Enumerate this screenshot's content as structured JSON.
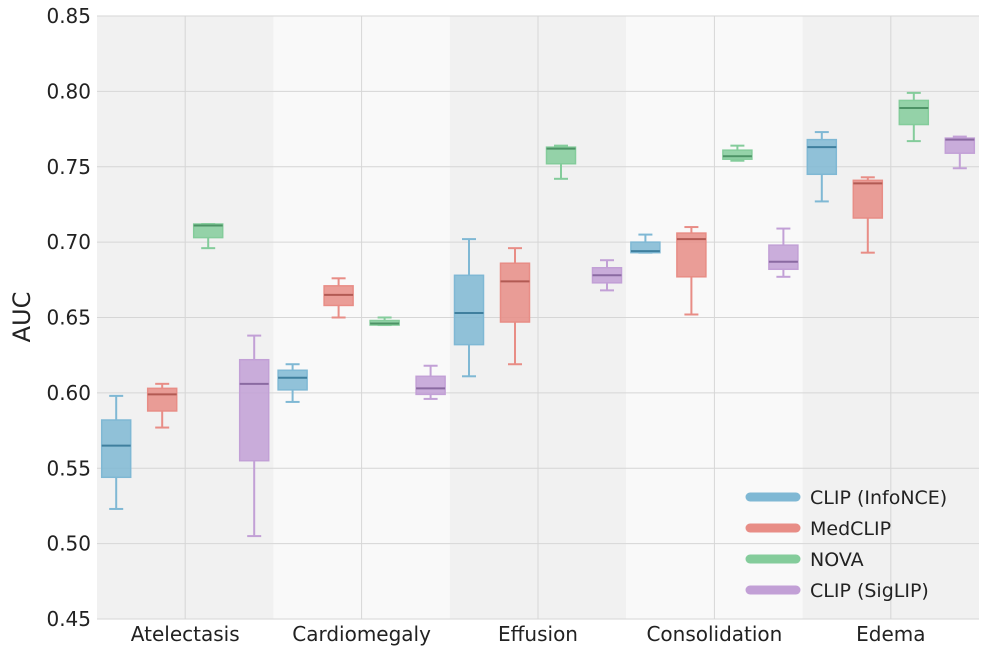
{
  "chart_data": {
    "type": "boxplot",
    "title": "",
    "xlabel": "",
    "ylabel": "AUC",
    "ylim": [
      0.45,
      0.85
    ],
    "yticks": [
      "0.45",
      "0.50",
      "0.55",
      "0.60",
      "0.65",
      "0.70",
      "0.75",
      "0.80",
      "0.85"
    ],
    "categories": [
      "Atelectasis",
      "Cardiomegaly",
      "Effusion",
      "Consolidation",
      "Edema"
    ],
    "grid": true,
    "legend_position": "bottom-right",
    "series": [
      {
        "name": "CLIP (InfoNCE)",
        "color": "#7fb8d4",
        "median_color": "#3f7f9e",
        "boxes": [
          {
            "min": 0.523,
            "q1": 0.544,
            "median": 0.565,
            "q3": 0.582,
            "max": 0.598
          },
          {
            "min": 0.594,
            "q1": 0.602,
            "median": 0.61,
            "q3": 0.615,
            "max": 0.619
          },
          {
            "min": 0.611,
            "q1": 0.632,
            "median": 0.653,
            "q3": 0.678,
            "max": 0.702
          },
          {
            "min": 0.693,
            "q1": 0.693,
            "median": 0.694,
            "q3": 0.7,
            "max": 0.705
          },
          {
            "min": 0.727,
            "q1": 0.745,
            "median": 0.763,
            "q3": 0.768,
            "max": 0.773
          }
        ]
      },
      {
        "name": "MedCLIP",
        "color": "#e88d86",
        "median_color": "#b25a53",
        "boxes": [
          {
            "min": 0.577,
            "q1": 0.588,
            "median": 0.599,
            "q3": 0.603,
            "max": 0.606
          },
          {
            "min": 0.65,
            "q1": 0.658,
            "median": 0.665,
            "q3": 0.671,
            "max": 0.676
          },
          {
            "min": 0.619,
            "q1": 0.647,
            "median": 0.674,
            "q3": 0.686,
            "max": 0.696
          },
          {
            "min": 0.652,
            "q1": 0.677,
            "median": 0.702,
            "q3": 0.706,
            "max": 0.71
          },
          {
            "min": 0.693,
            "q1": 0.716,
            "median": 0.739,
            "q3": 0.741,
            "max": 0.743
          }
        ]
      },
      {
        "name": "NOVA",
        "color": "#84cc9b",
        "median_color": "#4d9366",
        "boxes": [
          {
            "min": 0.696,
            "q1": 0.703,
            "median": 0.711,
            "q3": 0.712,
            "max": 0.712
          },
          {
            "min": 0.645,
            "q1": 0.645,
            "median": 0.646,
            "q3": 0.648,
            "max": 0.65
          },
          {
            "min": 0.742,
            "q1": 0.752,
            "median": 0.762,
            "q3": 0.763,
            "max": 0.764
          },
          {
            "min": 0.754,
            "q1": 0.755,
            "median": 0.757,
            "q3": 0.761,
            "max": 0.764
          },
          {
            "min": 0.767,
            "q1": 0.778,
            "median": 0.789,
            "q3": 0.794,
            "max": 0.799
          }
        ]
      },
      {
        "name": "CLIP (SigLIP)",
        "color": "#c2a0d6",
        "median_color": "#8a6aa1",
        "boxes": [
          {
            "min": 0.505,
            "q1": 0.555,
            "median": 0.606,
            "q3": 0.622,
            "max": 0.638
          },
          {
            "min": 0.596,
            "q1": 0.599,
            "median": 0.603,
            "q3": 0.611,
            "max": 0.618
          },
          {
            "min": 0.668,
            "q1": 0.673,
            "median": 0.678,
            "q3": 0.683,
            "max": 0.688
          },
          {
            "min": 0.677,
            "q1": 0.682,
            "median": 0.687,
            "q3": 0.698,
            "max": 0.709
          },
          {
            "min": 0.749,
            "q1": 0.759,
            "median": 0.768,
            "q3": 0.769,
            "max": 0.77
          }
        ]
      }
    ]
  }
}
